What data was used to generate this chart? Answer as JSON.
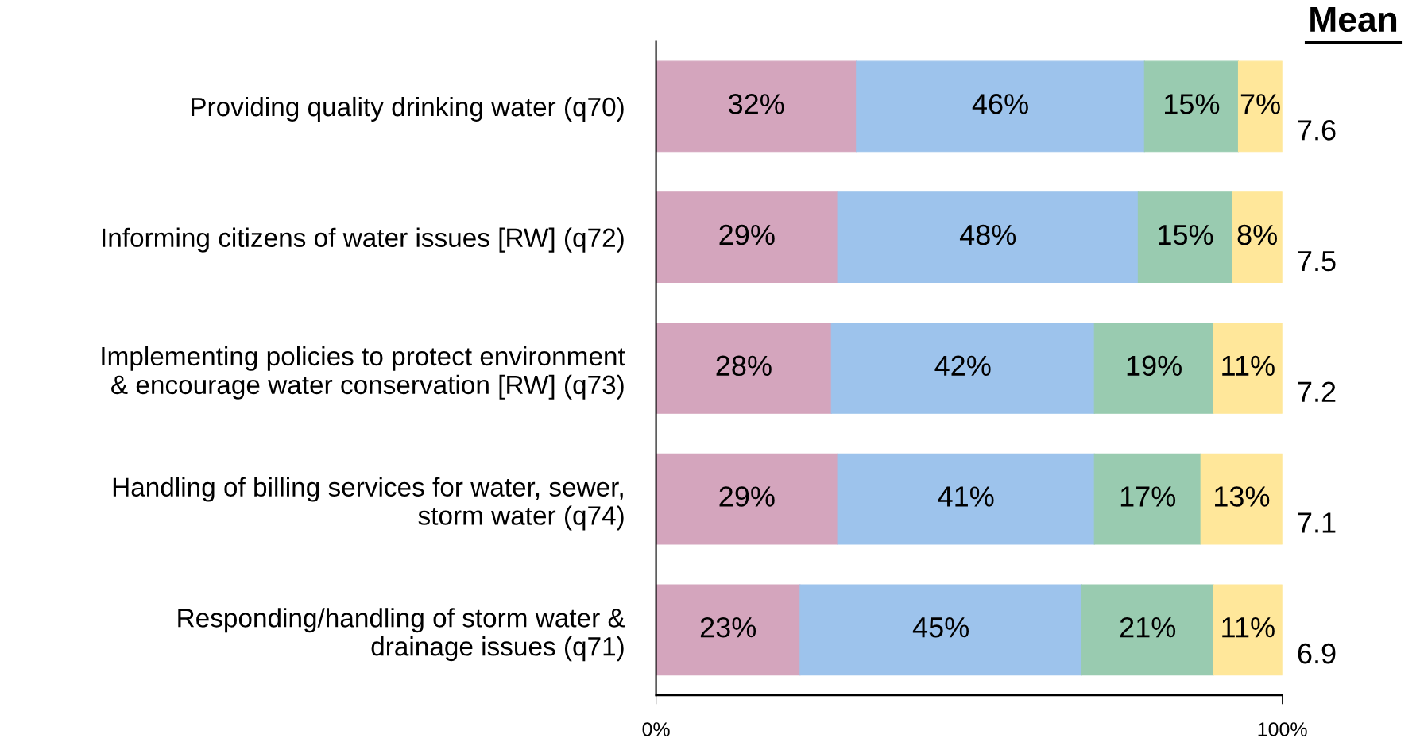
{
  "chart_data": {
    "type": "bar",
    "orientation": "horizontal",
    "stacked": true,
    "categories": [
      "Providing quality drinking water (q70)",
      "Informing citizens of water issues [RW] (q72)",
      "Implementing policies to protect environment\n& encourage water conservation [RW] (q73)",
      "Handling of billing services for water, sewer,\nstorm water (q74)",
      "Responding/handling of storm water &\ndrainage issues (q71)"
    ],
    "series": [
      {
        "color": "#d4a5bd",
        "values": [
          32,
          29,
          28,
          29,
          23
        ],
        "value_labels": [
          "32%",
          "29%",
          "28%",
          "29%",
          "23%"
        ]
      },
      {
        "color": "#9dc3ec",
        "values": [
          46,
          48,
          42,
          41,
          45
        ],
        "value_labels": [
          "46%",
          "48%",
          "42%",
          "41%",
          "45%"
        ]
      },
      {
        "color": "#99cbb0",
        "values": [
          15,
          15,
          19,
          17,
          21
        ],
        "value_labels": [
          "15%",
          "15%",
          "19%",
          "17%",
          "21%"
        ]
      },
      {
        "color": "#ffe79a",
        "values": [
          7,
          8,
          11,
          13,
          11
        ],
        "value_labels": [
          "7%",
          "8%",
          "11%",
          "13%",
          "11%"
        ]
      }
    ],
    "xlim": [
      0,
      100
    ],
    "xticks": [
      {
        "value": 0,
        "label": "0%"
      },
      {
        "value": 100,
        "label": "100%"
      }
    ],
    "grid": false,
    "legend": false,
    "annotations": [
      "Mean",
      "7.6",
      "7.5",
      "7.2",
      "7.1",
      "6.9"
    ]
  }
}
